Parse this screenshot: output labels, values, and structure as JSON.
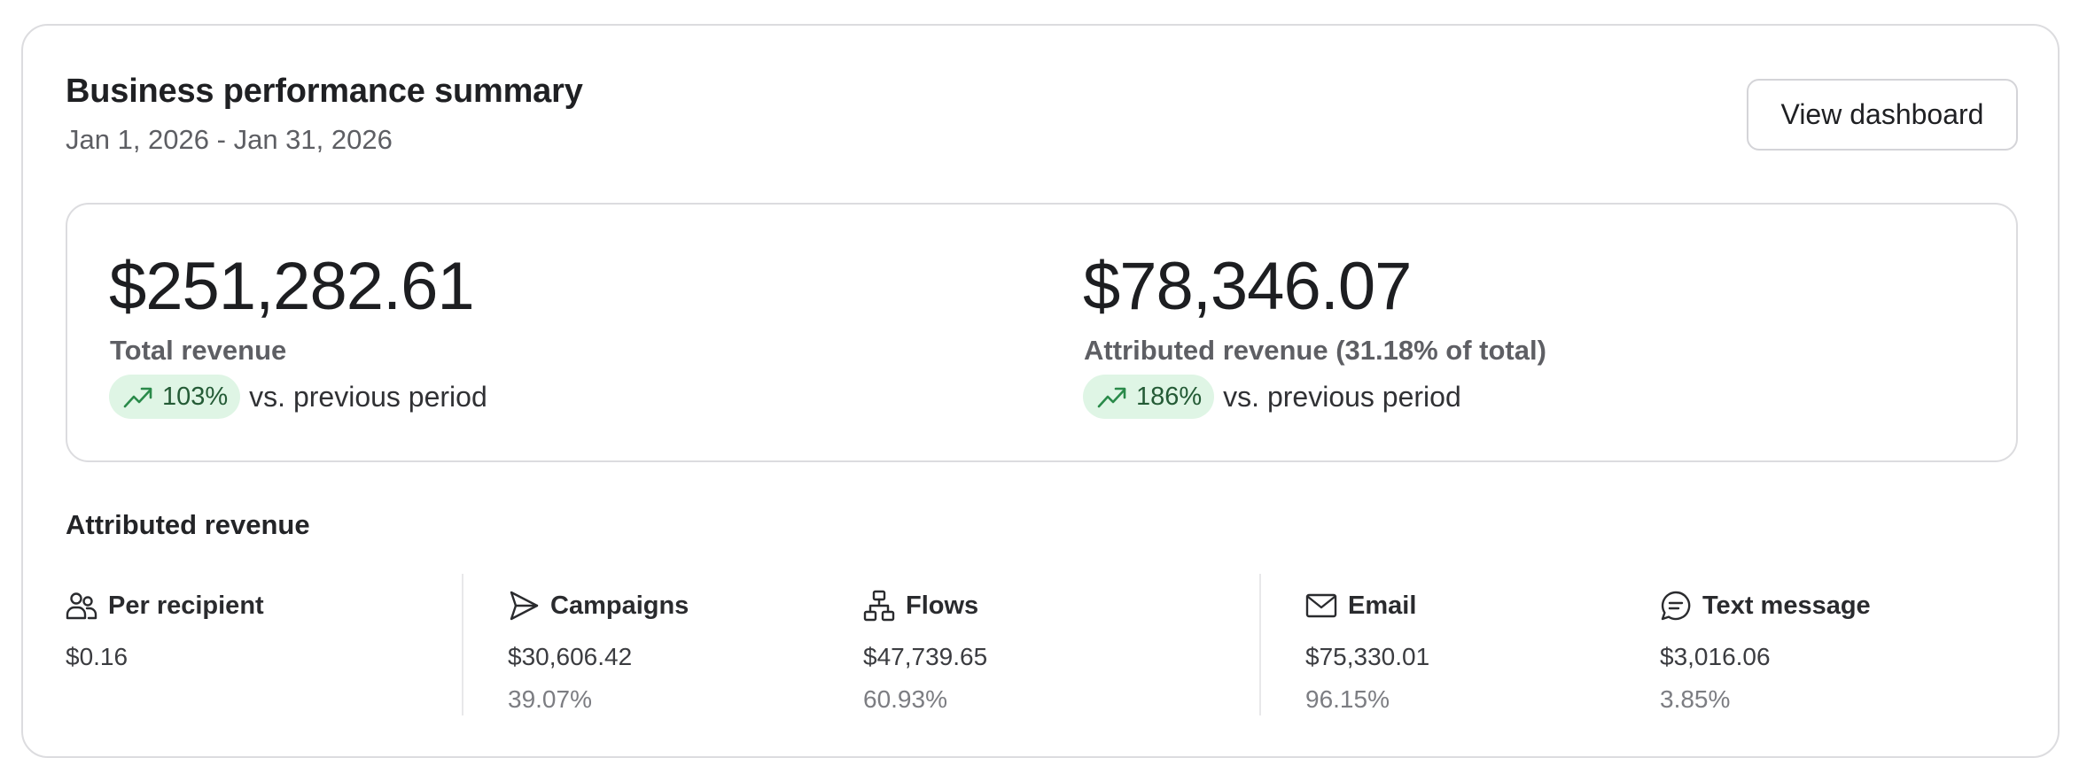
{
  "header": {
    "title": "Business performance summary",
    "date_range": "Jan 1, 2026 -  Jan 31, 2026",
    "view_dashboard_label": "View dashboard"
  },
  "summary": {
    "total": {
      "value": "$251,282.61",
      "label": "Total revenue",
      "change": "103%",
      "change_icon": "trending-up-icon",
      "comparison": "vs. previous period"
    },
    "attributed": {
      "value": "$78,346.07",
      "label": "Attributed revenue (31.18% of total)",
      "change": "186%",
      "change_icon": "trending-up-icon",
      "comparison": "vs. previous period"
    }
  },
  "attributed_section": {
    "title": "Attributed revenue",
    "items": [
      {
        "label": "Per recipient",
        "icon": "users-icon",
        "value": "$0.16",
        "percent": ""
      },
      {
        "label": "Campaigns",
        "icon": "send-icon",
        "value": "$30,606.42",
        "percent": "39.07%"
      },
      {
        "label": "Flows",
        "icon": "flow-icon",
        "value": "$47,739.65",
        "percent": "60.93%"
      },
      {
        "label": "Email",
        "icon": "mail-icon",
        "value": "$75,330.01",
        "percent": "96.15%"
      },
      {
        "label": "Text message",
        "icon": "message-icon",
        "value": "$3,016.06",
        "percent": "3.85%"
      }
    ]
  },
  "colors": {
    "positive_badge_bg": "#dff5e5",
    "positive_icon": "#2a8a4a",
    "border": "#dcdcdf"
  }
}
